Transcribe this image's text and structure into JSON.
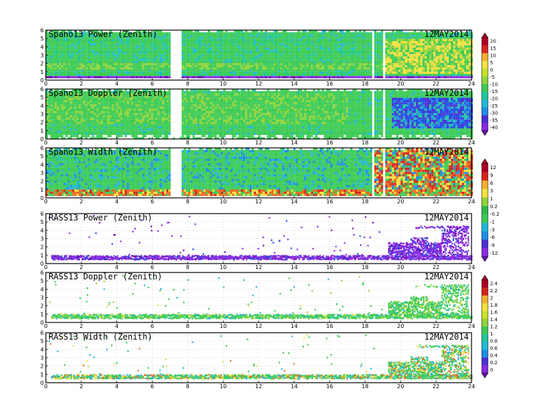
{
  "figure": {
    "date_label": "12MAY2014"
  },
  "panels": [
    {
      "title": "Spano13 Power (Zenith)",
      "date": "12MAY2014",
      "kind": "dense_power",
      "scale": 0
    },
    {
      "title": "Spano13 Doppler (Zenith)",
      "date": "12MAY2014",
      "kind": "dense_doppler",
      "scale": 0
    },
    {
      "title": "Spano13 Width (Zenith)",
      "date": "12MAY2014",
      "kind": "dense_width",
      "scale": 1
    },
    {
      "title": "RASS13 Power (Zenith)",
      "date": "12MAY2014",
      "kind": "sparse_power",
      "scale": 1
    },
    {
      "title": "RASS13 Doppler (Zenith)",
      "date": "12MAY2014",
      "kind": "sparse_doppler",
      "scale": 2
    },
    {
      "title": "RASS13 Width (Zenith)",
      "date": "12MAY2014",
      "kind": "sparse_width",
      "scale": 2
    }
  ],
  "colorbars": [
    {
      "ticks": [
        "20",
        "15",
        "10",
        "5",
        "0",
        "-5",
        "-10",
        "-15",
        "-20",
        "-25",
        "-30",
        "-35",
        "-40"
      ]
    },
    {
      "ticks": [
        "12",
        "9",
        "6",
        "3",
        "1",
        "0.2",
        "-0.2",
        "-1",
        "-3",
        "-6",
        "-9",
        "-12"
      ]
    },
    {
      "ticks": [
        "2.4",
        "2.2",
        "2",
        "1.8",
        "1.6",
        "1.4",
        "1.2",
        "1",
        "0.8",
        "0.6",
        "0.4",
        "0.2",
        "0"
      ]
    }
  ],
  "colors": {
    "palette": [
      "#6a0dad",
      "#8a2be2",
      "#4b2fd6",
      "#1e4fe6",
      "#1e8fe6",
      "#22b8d8",
      "#20c8a0",
      "#3ccc55",
      "#2fb84a",
      "#8fd43c",
      "#c8e02c",
      "#f2e040",
      "#f2b030",
      "#ec6a22",
      "#d8251e",
      "#b00024"
    ]
  },
  "chart_data": [
    {
      "type": "heatmap",
      "title": "Spano13 Power (Zenith)",
      "x_range": [
        0,
        24
      ],
      "y_range": [
        0,
        6
      ],
      "x_ticks": [
        "0",
        "2",
        "4",
        "6",
        "8",
        "10",
        "12",
        "14",
        "16",
        "18",
        "20",
        "22",
        "24"
      ],
      "y_ticks": [
        "0",
        "1",
        "2",
        "3",
        "4",
        "5",
        "6"
      ],
      "color_scale": "colorbar 1 (-40 to 20)",
      "description": "Mostly green/cyan returns 0.5-6 km all day; purple band near 0.5 km; yellow-green layer near 1.5-2 km; noisy yellow/orange above 1 km after 19 h; data gaps near 7-7.5 h and 18.3-19 h"
    },
    {
      "type": "heatmap",
      "title": "Spano13 Doppler (Zenith)",
      "x_range": [
        0,
        24
      ],
      "y_range": [
        0,
        6
      ],
      "x_ticks": [
        "0",
        "2",
        "4",
        "6",
        "8",
        "10",
        "12",
        "14",
        "16",
        "18",
        "20",
        "22",
        "24"
      ],
      "y_ticks": [
        "0",
        "1",
        "2",
        "3",
        "4",
        "5",
        "6"
      ],
      "color_scale": "colorbar 1 (-40 to 20)",
      "description": "Green fill with yellow-green streaks 0-17 h; blue/purple values 1.5-5 km after 19.5 h"
    },
    {
      "type": "heatmap",
      "title": "Spano13 Width (Zenith)",
      "x_range": [
        0,
        24
      ],
      "y_range": [
        0,
        6
      ],
      "x_ticks": [
        "0",
        "2",
        "4",
        "6",
        "8",
        "10",
        "12",
        "14",
        "16",
        "18",
        "20",
        "22",
        "24"
      ],
      "y_ticks": [
        "0",
        "1",
        "2",
        "3",
        "4",
        "5",
        "6"
      ],
      "color_scale": "colorbar 2 (-12 to 12)",
      "description": "Green with blue speckle; orange/red near 0.5-1 km; strongly mixed red/yellow/blue 1-6 km after 18.5 h"
    },
    {
      "type": "scatter",
      "title": "RASS13 Power (Zenith)",
      "x_range": [
        0,
        24
      ],
      "y_range": [
        0,
        6
      ],
      "x_ticks": [
        "0",
        "2",
        "4",
        "6",
        "8",
        "10",
        "12",
        "14",
        "16",
        "18",
        "20",
        "22",
        "24"
      ],
      "y_ticks": [
        "0",
        "1",
        "2",
        "3",
        "4",
        "5",
        "6"
      ],
      "color_scale": "colorbar 2 (-12 to 12)",
      "description": "Purple band near 0.6-1 km all day; sparse points above; dense purple/blue returns 1-4.5 km after 19.3 h"
    },
    {
      "type": "scatter",
      "title": "RASS13 Doppler (Zenith)",
      "x_range": [
        0,
        24
      ],
      "y_range": [
        0,
        6
      ],
      "x_ticks": [
        "0",
        "2",
        "4",
        "6",
        "8",
        "10",
        "12",
        "14",
        "16",
        "18",
        "20",
        "22",
        "24"
      ],
      "y_ticks": [
        "0",
        "1",
        "2",
        "3",
        "4",
        "5",
        "6"
      ],
      "color_scale": "colorbar 3 (0 to 2.4)",
      "description": "Green band near 0.7-0.9 km all day; green/yellow returns 1-4.5 km after 19.3 h"
    },
    {
      "type": "scatter",
      "title": "RASS13 Width (Zenith)",
      "x_range": [
        0,
        24
      ],
      "y_range": [
        0,
        6
      ],
      "x_ticks": [
        "0",
        "2",
        "4",
        "6",
        "8",
        "10",
        "12",
        "14",
        "16",
        "18",
        "20",
        "22",
        "24"
      ],
      "y_ticks": [
        "0",
        "1",
        "2",
        "3",
        "4",
        "5",
        "6"
      ],
      "color_scale": "colorbar 3 (0 to 2.4)",
      "description": "Green/yellow/orange band near 0.6-1 km; green/cyan returns 1-4.5 km after 19.3 h"
    }
  ]
}
